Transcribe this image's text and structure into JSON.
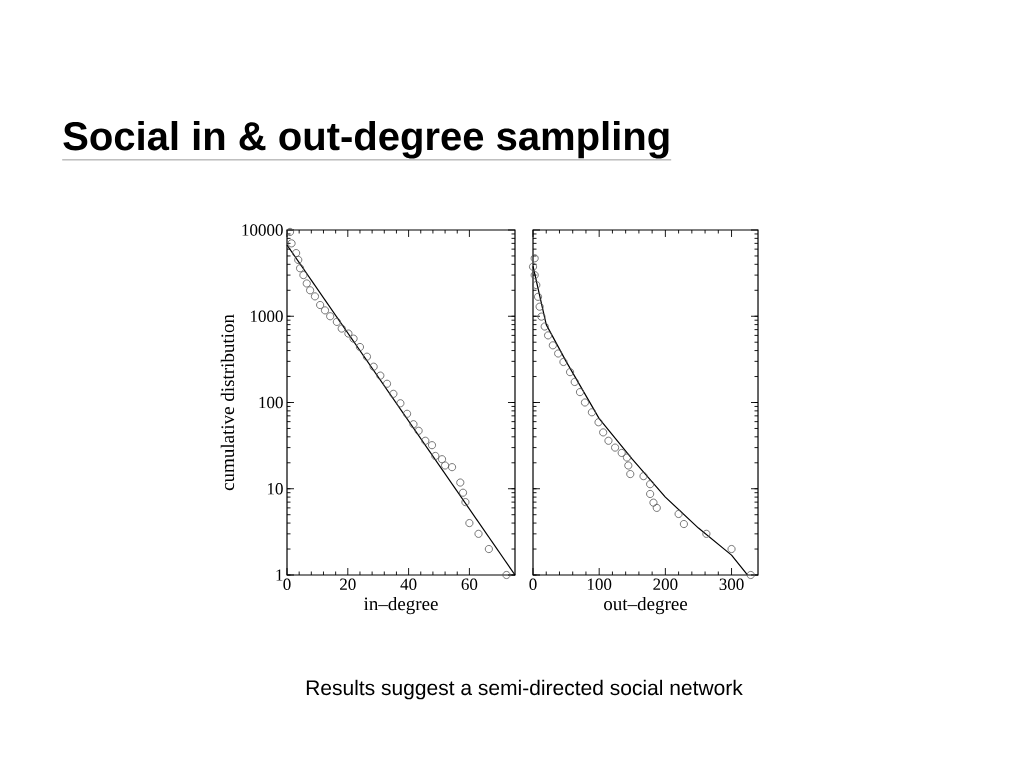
{
  "chart_data": [
    {
      "type": "scatter",
      "title": "Social in & out-degree sampling",
      "xlabel": "in–degree",
      "ylabel": "cumulative distribution",
      "log": "y",
      "xlim": [
        0,
        75
      ],
      "xticks": [
        0,
        20,
        40,
        60
      ],
      "ylim": [
        1,
        10000
      ],
      "yticks": [
        1,
        10,
        100,
        1000,
        10000
      ],
      "annotations": [
        "Results suggest a semi-directed social network"
      ],
      "series": [
        {
          "type": "scatter",
          "marker": "circle",
          "color": "#555555",
          "x": [
            1,
            1.5,
            3,
            3.7,
            4.3,
            5.4,
            6.5,
            7.6,
            9.2,
            10.9,
            12.5,
            14.2,
            16.4,
            18,
            20.2,
            21.9,
            24,
            26.3,
            28.5,
            30.7,
            32.9,
            35,
            37.3,
            39.5,
            41.6,
            43.3,
            45.5,
            47.7,
            48.8,
            51,
            52,
            54.3,
            57,
            57.9,
            58.7,
            60,
            63,
            66.4,
            72.2
          ],
          "values": [
            9500,
            7000,
            5400,
            4500,
            3600,
            3000,
            2400,
            2000,
            1700,
            1350,
            1170,
            1000,
            860,
            720,
            630,
            550,
            440,
            340,
            260,
            205,
            165,
            126,
            98,
            74,
            56,
            47,
            36,
            32,
            24,
            22,
            18.6,
            17.8,
            11.8,
            9,
            7,
            4,
            3,
            2,
            1
          ]
        },
        {
          "type": "line",
          "marker": "none",
          "color": "#000000",
          "x": [
            0,
            75
          ],
          "values": [
            6700,
            1
          ]
        }
      ]
    },
    {
      "type": "scatter",
      "xlabel": "out–degree",
      "log": "y",
      "xlim": [
        0,
        340
      ],
      "xticks": [
        0,
        100,
        200,
        300
      ],
      "ylim": [
        1,
        10000
      ],
      "yticks": [
        1,
        10,
        100,
        1000,
        10000
      ],
      "tick_labels": "x",
      "series": [
        {
          "type": "scatter",
          "marker": "circle",
          "color": "#555555",
          "x": [
            2.5,
            0,
            2.5,
            5,
            7.6,
            10,
            12.7,
            17.7,
            22.8,
            30,
            38,
            46,
            56,
            63,
            71,
            78.5,
            89,
            99,
            106,
            114,
            124,
            134,
            142,
            144,
            147,
            167,
            177,
            177,
            182,
            187,
            220,
            228,
            262,
            300,
            329
          ],
          "values": [
            4700,
            3750,
            3000,
            2300,
            1680,
            1290,
            990,
            760,
            600,
            460,
            370,
            295,
            225,
            173,
            132,
            100,
            77,
            59,
            45,
            36,
            30,
            26,
            23,
            18.6,
            14.8,
            14,
            11.3,
            8.7,
            6.9,
            6,
            5.1,
            3.9,
            3,
            2,
            1
          ]
        },
        {
          "type": "line",
          "marker": "none",
          "color": "#000000",
          "x": [
            0,
            20,
            50,
            100,
            150,
            200,
            250,
            300,
            324
          ],
          "values": [
            3800,
            800,
            300,
            65,
            22,
            8,
            3.5,
            1.7,
            1
          ]
        }
      ]
    }
  ]
}
